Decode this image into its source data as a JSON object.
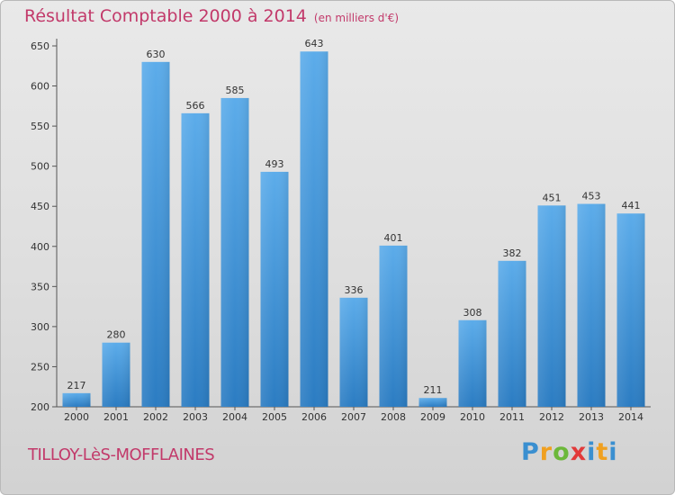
{
  "header": {
    "title": "Résultat Comptable 2000 à 2014",
    "subtitle": "(en milliers d'€)"
  },
  "footer": {
    "commune": "TILLOY-LèS-MOFFLAINES",
    "logo": "Proxiti"
  },
  "colors": {
    "title": "#c2396a",
    "bar_top": "#5aaae6",
    "bar_bottom": "#2f7fc4"
  },
  "chart_data": {
    "type": "bar",
    "title": "Résultat Comptable 2000 à 2014",
    "subtitle": "(en milliers d'€)",
    "categories": [
      "2000",
      "2001",
      "2002",
      "2003",
      "2004",
      "2005",
      "2006",
      "2007",
      "2008",
      "2009",
      "2010",
      "2011",
      "2012",
      "2013",
      "2014"
    ],
    "values": [
      217,
      280,
      630,
      566,
      585,
      493,
      643,
      336,
      401,
      211,
      308,
      382,
      451,
      453,
      441
    ],
    "yticks": [
      200,
      250,
      300,
      350,
      400,
      450,
      500,
      550,
      600,
      650
    ],
    "ylim": [
      200,
      650
    ],
    "xlabel": "",
    "ylabel": "",
    "grid": false,
    "legend": "none"
  }
}
